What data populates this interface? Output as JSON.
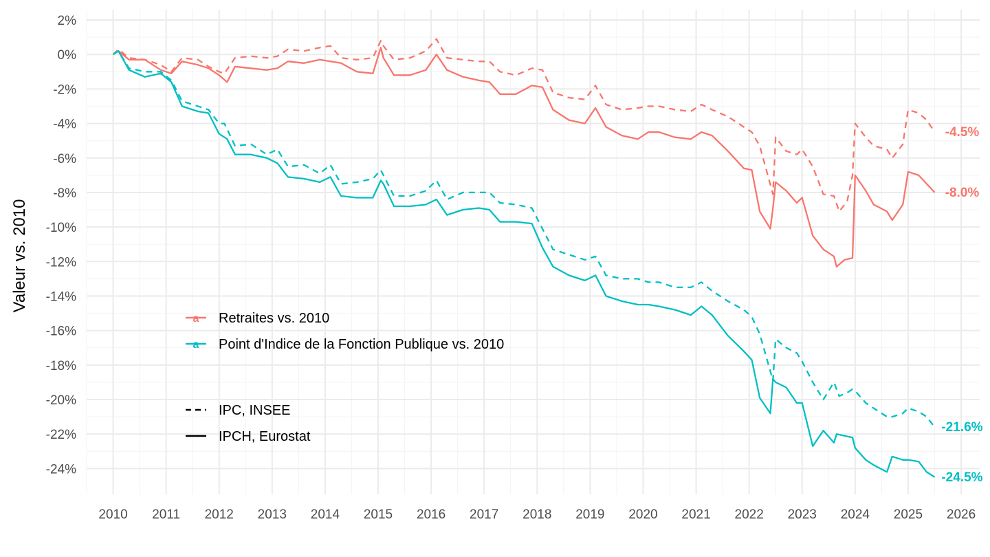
{
  "chart_data": {
    "type": "line",
    "title": "",
    "xlabel": "",
    "ylabel": "Valeur vs. 2010",
    "xlim": [
      2009.5,
      2026.35
    ],
    "ylim": [
      -25.5,
      2.6
    ],
    "grid": true,
    "x_ticks": [
      "2010",
      "2011",
      "2012",
      "2013",
      "2014",
      "2015",
      "2016",
      "2017",
      "2018",
      "2019",
      "2020",
      "2021",
      "2022",
      "2023",
      "2024",
      "2025",
      "2026"
    ],
    "y_ticks": [
      2,
      0,
      -2,
      -4,
      -6,
      -8,
      -10,
      -12,
      -14,
      -16,
      -18,
      -20,
      -22,
      -24
    ],
    "y_tick_labels": [
      "2%",
      "0%",
      "-2%",
      "-4%",
      "-6%",
      "-8%",
      "-10%",
      "-12%",
      "-14%",
      "-16%",
      "-18%",
      "-20%",
      "-22%",
      "-24%"
    ],
    "colors": {
      "retraites": "#F8766D",
      "point_indice": "#00BFC4",
      "grid_major": "#ebebeb",
      "grid_minor": "#f5f5f5"
    },
    "color_legend": {
      "key_glyph": "a",
      "entries": [
        {
          "id": "retraites",
          "label": "Retraites vs. 2010"
        },
        {
          "id": "point_indice",
          "label": "Point d'Indice de la Fonction Publique vs. 2010"
        }
      ]
    },
    "linetype_legend": {
      "entries": [
        {
          "id": "ipc",
          "label": "IPC, INSEE",
          "dash": "dashed"
        },
        {
          "id": "ipch",
          "label": "IPCH, Eurostat",
          "dash": "solid"
        }
      ]
    },
    "series": [
      {
        "name": "Retraites vs. 2010 — IPC, INSEE",
        "color_id": "retraites",
        "dash": "dashed",
        "x": [
          2010.0,
          2010.1,
          2010.3,
          2010.6,
          2010.9,
          2011.1,
          2011.3,
          2011.6,
          2011.8,
          2012.0,
          2012.1,
          2012.3,
          2012.6,
          2012.9,
          2013.1,
          2013.3,
          2013.6,
          2013.9,
          2014.1,
          2014.3,
          2014.6,
          2014.9,
          2015.05,
          2015.1,
          2015.3,
          2015.6,
          2015.9,
          2016.1,
          2016.3,
          2016.6,
          2016.9,
          2017.1,
          2017.3,
          2017.6,
          2017.9,
          2018.1,
          2018.3,
          2018.6,
          2018.9,
          2019.1,
          2019.3,
          2019.6,
          2019.9,
          2020.1,
          2020.3,
          2020.6,
          2020.9,
          2021.1,
          2021.3,
          2021.6,
          2021.9,
          2022.05,
          2022.2,
          2022.45,
          2022.5,
          2022.7,
          2022.9,
          2023.0,
          2023.2,
          2023.4,
          2023.6,
          2023.7,
          2023.85,
          2023.95,
          2024.0,
          2024.2,
          2024.35,
          2024.6,
          2024.7,
          2024.9,
          2025.0,
          2025.2,
          2025.35,
          2025.5
        ],
        "y": [
          0,
          0.3,
          -0.2,
          -0.3,
          -0.6,
          -1.0,
          -0.2,
          -0.3,
          -0.7,
          -1.0,
          -1.1,
          -0.2,
          -0.1,
          -0.2,
          -0.1,
          0.3,
          0.2,
          0.4,
          0.5,
          -0.2,
          -0.3,
          -0.2,
          0.8,
          0.5,
          -0.3,
          -0.2,
          0.2,
          0.9,
          -0.2,
          -0.3,
          -0.4,
          -0.4,
          -1.0,
          -1.2,
          -0.8,
          -0.9,
          -2.2,
          -2.5,
          -2.6,
          -1.8,
          -2.9,
          -3.2,
          -3.1,
          -3.0,
          -3.0,
          -3.2,
          -3.3,
          -2.9,
          -3.2,
          -3.6,
          -4.2,
          -4.5,
          -5.3,
          -8.1,
          -4.8,
          -5.6,
          -5.8,
          -5.5,
          -6.5,
          -8.1,
          -8.2,
          -9.1,
          -8.5,
          -7.0,
          -4.0,
          -4.8,
          -5.3,
          -5.5,
          -6.0,
          -5.2,
          -3.2,
          -3.4,
          -3.8,
          -4.5
        ]
      },
      {
        "name": "Retraites vs. 2010 — IPCH, Eurostat",
        "color_id": "retraites",
        "dash": "solid",
        "x": [
          2010.0,
          2010.1,
          2010.3,
          2010.6,
          2010.9,
          2011.1,
          2011.3,
          2011.6,
          2011.8,
          2012.0,
          2012.15,
          2012.3,
          2012.6,
          2012.9,
          2013.1,
          2013.3,
          2013.6,
          2013.9,
          2014.1,
          2014.3,
          2014.6,
          2014.9,
          2015.05,
          2015.1,
          2015.3,
          2015.6,
          2015.9,
          2016.1,
          2016.3,
          2016.6,
          2016.9,
          2017.1,
          2017.3,
          2017.6,
          2017.9,
          2018.1,
          2018.3,
          2018.6,
          2018.9,
          2019.1,
          2019.3,
          2019.6,
          2019.9,
          2020.1,
          2020.3,
          2020.6,
          2020.9,
          2021.1,
          2021.3,
          2021.6,
          2021.9,
          2022.05,
          2022.2,
          2022.4,
          2022.45,
          2022.5,
          2022.7,
          2022.9,
          2023.0,
          2023.2,
          2023.4,
          2023.6,
          2023.65,
          2023.8,
          2023.95,
          2024.0,
          2024.2,
          2024.35,
          2024.6,
          2024.7,
          2024.9,
          2025.0,
          2025.2,
          2025.35,
          2025.5
        ],
        "y": [
          0,
          0.2,
          -0.3,
          -0.3,
          -0.9,
          -1.1,
          -0.4,
          -0.6,
          -0.8,
          -1.2,
          -1.6,
          -0.7,
          -0.8,
          -0.9,
          -0.8,
          -0.4,
          -0.5,
          -0.3,
          -0.4,
          -0.5,
          -1.0,
          -1.1,
          0.4,
          -0.2,
          -1.2,
          -1.2,
          -0.9,
          0.0,
          -0.9,
          -1.3,
          -1.5,
          -1.6,
          -2.3,
          -2.3,
          -1.8,
          -1.9,
          -3.2,
          -3.8,
          -4.0,
          -3.1,
          -4.2,
          -4.7,
          -4.9,
          -4.5,
          -4.5,
          -4.8,
          -4.9,
          -4.5,
          -4.7,
          -5.6,
          -6.6,
          -6.7,
          -9.1,
          -10.1,
          -8.9,
          -7.4,
          -7.9,
          -8.6,
          -8.3,
          -10.5,
          -11.3,
          -11.7,
          -12.3,
          -11.9,
          -11.8,
          -7.0,
          -7.9,
          -8.7,
          -9.1,
          -9.6,
          -8.7,
          -6.8,
          -7.0,
          -7.5,
          -8.0
        ]
      },
      {
        "name": "Point d'Indice de la Fonction Publique vs. 2010 — IPC, INSEE",
        "color_id": "point_indice",
        "dash": "dashed",
        "x": [
          2010.0,
          2010.1,
          2010.3,
          2010.6,
          2010.9,
          2011.1,
          2011.3,
          2011.6,
          2011.8,
          2012.0,
          2012.1,
          2012.3,
          2012.6,
          2012.9,
          2013.1,
          2013.3,
          2013.6,
          2013.9,
          2014.1,
          2014.3,
          2014.6,
          2014.9,
          2015.05,
          2015.1,
          2015.3,
          2015.6,
          2015.9,
          2016.1,
          2016.3,
          2016.6,
          2016.9,
          2017.1,
          2017.3,
          2017.6,
          2017.9,
          2018.1,
          2018.3,
          2018.6,
          2018.9,
          2019.1,
          2019.3,
          2019.6,
          2019.9,
          2020.1,
          2020.3,
          2020.6,
          2020.9,
          2021.1,
          2021.3,
          2021.6,
          2021.9,
          2022.05,
          2022.2,
          2022.45,
          2022.5,
          2022.7,
          2022.9,
          2023.0,
          2023.2,
          2023.4,
          2023.6,
          2023.7,
          2023.85,
          2023.95,
          2024.0,
          2024.2,
          2024.35,
          2024.6,
          2024.7,
          2024.9,
          2025.0,
          2025.2,
          2025.35,
          2025.5
        ],
        "y": [
          0,
          0.2,
          -0.8,
          -1.0,
          -1.0,
          -1.5,
          -2.7,
          -3.0,
          -3.2,
          -4.0,
          -4.0,
          -5.3,
          -5.2,
          -5.8,
          -5.5,
          -6.5,
          -6.4,
          -6.9,
          -6.4,
          -7.5,
          -7.4,
          -7.2,
          -6.7,
          -7.0,
          -8.2,
          -8.2,
          -7.9,
          -7.3,
          -8.4,
          -8.0,
          -8.0,
          -8.0,
          -8.6,
          -8.7,
          -8.9,
          -10.1,
          -11.3,
          -11.6,
          -11.9,
          -11.7,
          -12.8,
          -13.0,
          -13.0,
          -13.2,
          -13.2,
          -13.5,
          -13.5,
          -13.2,
          -13.7,
          -14.3,
          -14.8,
          -15.2,
          -16.2,
          -18.9,
          -16.5,
          -17.0,
          -17.3,
          -17.8,
          -19.0,
          -20.0,
          -19.0,
          -19.8,
          -19.6,
          -19.4,
          -19.5,
          -20.2,
          -20.5,
          -21.0,
          -21.0,
          -20.8,
          -20.5,
          -20.7,
          -21.0,
          -21.6
        ]
      },
      {
        "name": "Point d'Indice de la Fonction Publique vs. 2010 — IPCH, Eurostat",
        "color_id": "point_indice",
        "dash": "solid",
        "x": [
          2010.0,
          2010.1,
          2010.3,
          2010.6,
          2010.9,
          2011.1,
          2011.3,
          2011.6,
          2011.8,
          2012.0,
          2012.15,
          2012.3,
          2012.6,
          2012.9,
          2013.1,
          2013.3,
          2013.6,
          2013.9,
          2014.1,
          2014.3,
          2014.6,
          2014.9,
          2015.05,
          2015.1,
          2015.3,
          2015.6,
          2015.9,
          2016.1,
          2016.3,
          2016.6,
          2016.9,
          2017.1,
          2017.3,
          2017.6,
          2017.9,
          2018.1,
          2018.3,
          2018.6,
          2018.9,
          2019.1,
          2019.3,
          2019.6,
          2019.9,
          2020.1,
          2020.3,
          2020.6,
          2020.9,
          2021.1,
          2021.3,
          2021.6,
          2021.9,
          2022.05,
          2022.2,
          2022.4,
          2022.45,
          2022.5,
          2022.7,
          2022.9,
          2023.0,
          2023.2,
          2023.4,
          2023.6,
          2023.65,
          2023.8,
          2023.95,
          2024.0,
          2024.2,
          2024.35,
          2024.6,
          2024.7,
          2024.9,
          2025.0,
          2025.2,
          2025.35,
          2025.5
        ],
        "y": [
          0,
          0.2,
          -0.9,
          -1.3,
          -1.1,
          -1.6,
          -3.0,
          -3.3,
          -3.4,
          -4.6,
          -4.9,
          -5.8,
          -5.8,
          -6.0,
          -6.3,
          -7.1,
          -7.2,
          -7.4,
          -7.1,
          -8.2,
          -8.3,
          -8.3,
          -7.3,
          -7.5,
          -8.8,
          -8.8,
          -8.7,
          -8.4,
          -9.3,
          -9.0,
          -8.9,
          -9.0,
          -9.7,
          -9.7,
          -9.8,
          -11.2,
          -12.3,
          -12.8,
          -13.1,
          -12.8,
          -14.0,
          -14.3,
          -14.5,
          -14.5,
          -14.6,
          -14.8,
          -15.1,
          -14.6,
          -15.1,
          -16.3,
          -17.2,
          -17.7,
          -19.9,
          -20.8,
          -18.8,
          -19.0,
          -19.3,
          -20.2,
          -20.2,
          -22.7,
          -21.8,
          -22.5,
          -22.0,
          -22.1,
          -22.2,
          -22.8,
          -23.5,
          -23.8,
          -24.2,
          -23.3,
          -23.5,
          -23.5,
          -23.6,
          -24.2,
          -24.5
        ]
      }
    ],
    "end_labels": [
      {
        "x": 2025.5,
        "y": -4.5,
        "text": "-4.5%",
        "color_id": "retraites"
      },
      {
        "x": 2025.5,
        "y": -8.0,
        "text": "-8.0%",
        "color_id": "retraites"
      },
      {
        "x": 2025.5,
        "y": -21.6,
        "text": "-21.6%",
        "color_id": "point_indice"
      },
      {
        "x": 2025.5,
        "y": -24.5,
        "text": "-24.5%",
        "color_id": "point_indice"
      }
    ]
  }
}
